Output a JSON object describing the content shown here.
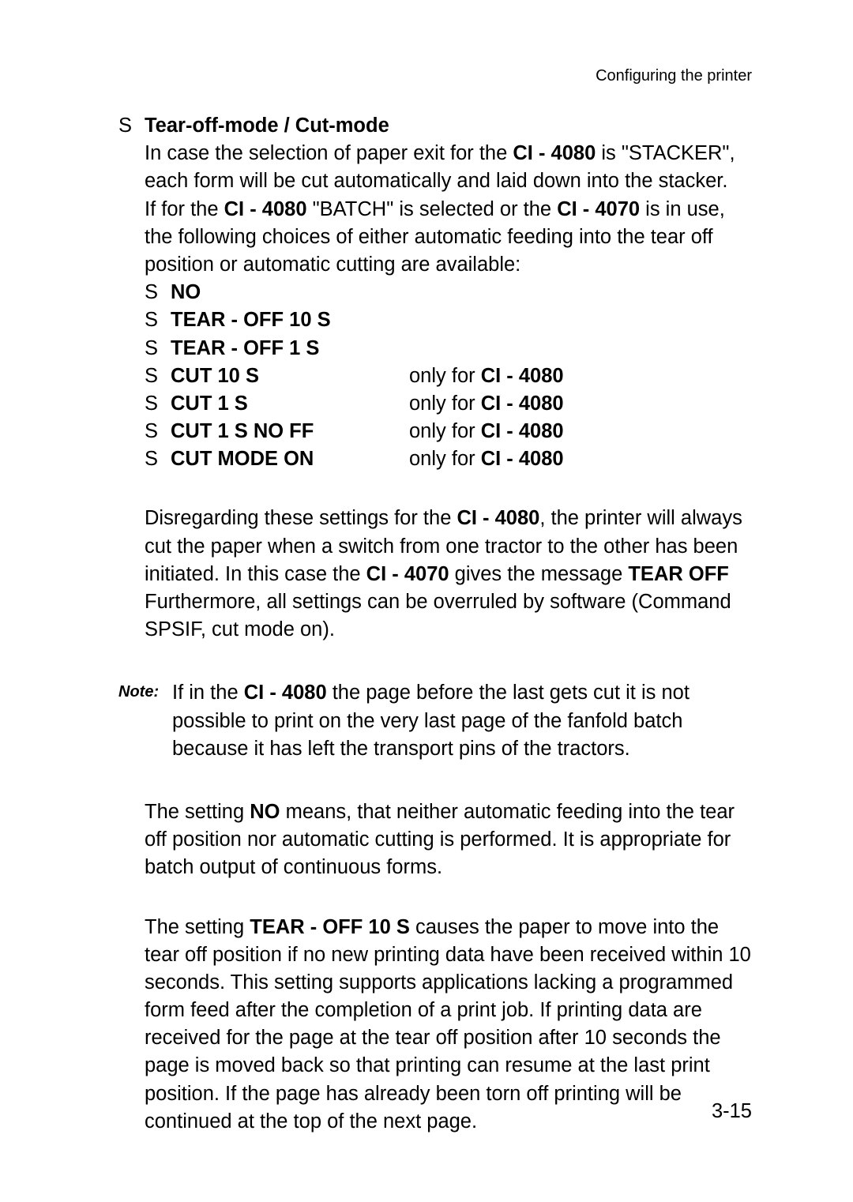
{
  "header": {
    "title": "Configuring the printer"
  },
  "section": {
    "bullet": "S",
    "title": "Tear-off-mode / Cut-mode",
    "intro_parts": [
      "In case the selection of paper exit for the ",
      "CI - 4080",
      " is \"STACKER\", each form will be cut automatically and laid down into the stacker.",
      "If for the ",
      "CI - 4080",
      " \"BATCH\" is selected or the ",
      "CI - 4070",
      " is in use, the following choices of either automatic feeding into the tear off position or automatic cutting are available:"
    ],
    "options": [
      {
        "bullet": "S",
        "label": "NO",
        "note_prefix": "",
        "note_model": ""
      },
      {
        "bullet": "S",
        "label": "TEAR - OFF 10 S",
        "note_prefix": "",
        "note_model": ""
      },
      {
        "bullet": "S",
        "label": "TEAR - OFF  1 S",
        "note_prefix": "",
        "note_model": ""
      },
      {
        "bullet": "S",
        "label": "CUT 10 S",
        "note_prefix": "only for ",
        "note_model": "CI - 4080"
      },
      {
        "bullet": "S",
        "label": "CUT  1 S",
        "note_prefix": "only for ",
        "note_model": "CI - 4080"
      },
      {
        "bullet": "S",
        "label": "CUT  1 S NO FF",
        "note_prefix": "only for ",
        "note_model": "CI - 4080"
      },
      {
        "bullet": "S",
        "label": "CUT MODE ON",
        "note_prefix": "only for ",
        "note_model": "CI - 4080"
      }
    ],
    "after_options_parts": [
      "Disregarding these settings for the ",
      "CI - 4080",
      ", the printer will always cut the paper when a switch from one tractor to the other has been initiated. In this case the ",
      "CI - 4070",
      " gives the message ",
      "TEAR OFF",
      " Furthermore, all settings can be overruled by software (Command SPSIF, cut mode on)."
    ],
    "note_label": "Note:",
    "note_parts": [
      "If in the ",
      "CI - 4080",
      " the page before the last gets cut it is not possible to print on the very last page of the fanfold batch because it has left the transport pins of the tractors."
    ],
    "para_no_parts": [
      "The setting ",
      "NO",
      " means, that neither automatic feeding into the tear off position nor automatic cutting is performed. It is appropriate for batch output of continuous forms."
    ],
    "para_tear_parts": [
      "The setting ",
      "TEAR - OFF 10 S",
      " causes the paper to move into the tear off position if no new printing data have been received within 10 seconds. This setting supports applications lacking a programmed form feed after the completion of a print job. If printing data are received for the page at the tear off position after 10 seconds the page is moved back so that printing can resume at the last print position. If the page has already been torn off printing will be continued at the top of the next page."
    ]
  },
  "page_number": "3-15"
}
